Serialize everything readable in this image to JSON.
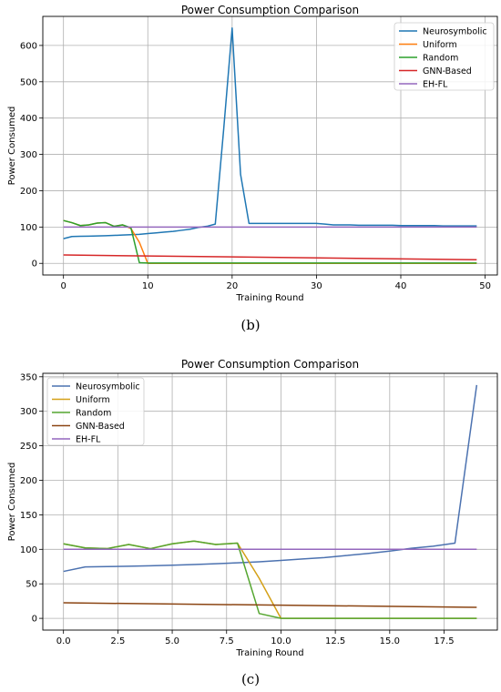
{
  "chart_data": [
    {
      "type": "line",
      "panel_label": "(b)",
      "title": "Power Consumption Comparison",
      "xlabel": "Training Round",
      "ylabel": "Power Consumed",
      "xlim": [
        -2.45,
        51.45
      ],
      "ylim": [
        -32,
        680
      ],
      "xticks": [
        0,
        10,
        20,
        30,
        40,
        50
      ],
      "xtick_labels": [
        "0",
        "10",
        "20",
        "30",
        "40",
        "50"
      ],
      "yticks": [
        0,
        100,
        200,
        300,
        400,
        500,
        600
      ],
      "ytick_labels": [
        "0",
        "100",
        "200",
        "300",
        "400",
        "500",
        "600"
      ],
      "grid": true,
      "legend_position": "top-right",
      "series": [
        {
          "name": "Neurosymbolic",
          "color": "#1f77b4",
          "x": [
            0,
            1,
            2,
            3,
            4,
            5,
            6,
            7,
            8,
            9,
            10,
            11,
            12,
            13,
            14,
            15,
            16,
            17,
            18,
            19,
            20,
            21,
            22,
            23,
            24,
            25,
            26,
            27,
            28,
            29,
            30,
            31,
            32,
            33,
            34,
            35,
            36,
            37,
            38,
            39,
            40,
            41,
            42,
            43,
            44,
            45,
            46,
            47,
            48,
            49
          ],
          "y": [
            68,
            74,
            74.5,
            75,
            75.5,
            76,
            77,
            78,
            79,
            80,
            82,
            84,
            86,
            88,
            91,
            94,
            99,
            102,
            108,
            370,
            648,
            245,
            110,
            110,
            110,
            110,
            110,
            110,
            110,
            110,
            110,
            108,
            106,
            106,
            106,
            105,
            105,
            105,
            105,
            105,
            104,
            104,
            104,
            104,
            104,
            103,
            103,
            103,
            103,
            103
          ]
        },
        {
          "name": "Uniform",
          "color": "#ff7f0e",
          "x": [
            0,
            1,
            2,
            3,
            4,
            5,
            6,
            7,
            8,
            9,
            10,
            11,
            12,
            13,
            14,
            15,
            16,
            17,
            18,
            19,
            20,
            21,
            22,
            23,
            24,
            25,
            26,
            27,
            28,
            29,
            30,
            31,
            32,
            33,
            34,
            35,
            36,
            37,
            38,
            39,
            40,
            41,
            42,
            43,
            44,
            45,
            46,
            47,
            48,
            49
          ],
          "y": [
            118,
            112,
            104,
            106,
            111,
            112,
            102,
            106,
            96,
            58,
            0,
            0,
            0,
            0,
            0,
            0,
            0,
            0,
            0,
            0,
            0,
            0,
            0,
            0,
            0,
            0,
            0,
            0,
            0,
            0,
            0,
            0,
            0,
            0,
            0,
            0,
            0,
            0,
            0,
            0,
            0,
            0,
            0,
            0,
            0,
            0,
            0,
            0,
            0,
            0
          ]
        },
        {
          "name": "Random",
          "color": "#2ca02c",
          "x": [
            0,
            1,
            2,
            3,
            4,
            5,
            6,
            7,
            8,
            9,
            10,
            11,
            12,
            13,
            14,
            15,
            16,
            17,
            18,
            19,
            20,
            21,
            22,
            23,
            24,
            25,
            26,
            27,
            28,
            29,
            30,
            31,
            32,
            33,
            34,
            35,
            36,
            37,
            38,
            39,
            40,
            41,
            42,
            43,
            44,
            45,
            46,
            47,
            48,
            49
          ],
          "y": [
            118,
            112,
            104,
            106,
            111,
            112,
            102,
            106,
            98,
            2,
            1,
            1,
            1,
            1,
            1,
            1,
            1,
            1,
            1,
            1,
            1,
            1,
            1,
            1,
            1,
            1,
            1,
            1,
            1,
            1,
            1,
            1,
            1,
            1,
            1,
            1,
            1,
            1,
            1,
            1,
            1,
            1,
            1,
            1,
            1,
            1,
            1,
            1,
            1,
            1
          ]
        },
        {
          "name": "GNN-Based",
          "color": "#d62728",
          "x": [
            0,
            49
          ],
          "y": [
            23,
            10
          ]
        },
        {
          "name": "EH-FL",
          "color": "#9467bd",
          "x": [
            0,
            49
          ],
          "y": [
            100,
            100
          ]
        }
      ]
    },
    {
      "type": "line",
      "panel_label": "(c)",
      "title": "Power Consumption Comparison",
      "xlabel": "Training Round",
      "ylabel": "Power Consumed",
      "xlim": [
        -0.95,
        19.95
      ],
      "ylim": [
        -17,
        355
      ],
      "xticks": [
        0,
        2.5,
        5,
        7.5,
        10,
        12.5,
        15,
        17.5
      ],
      "xtick_labels": [
        "0.0",
        "2.5",
        "5.0",
        "7.5",
        "10.0",
        "12.5",
        "15.0",
        "17.5"
      ],
      "yticks": [
        0,
        50,
        100,
        150,
        200,
        250,
        300,
        350
      ],
      "ytick_labels": [
        "0",
        "50",
        "100",
        "150",
        "200",
        "250",
        "300",
        "350"
      ],
      "grid": true,
      "legend_position": "top-left",
      "series": [
        {
          "name": "Neurosymbolic",
          "color": "#4c72b0",
          "x": [
            0,
            1,
            2,
            3,
            4,
            5,
            6,
            7,
            8,
            9,
            10,
            11,
            12,
            13,
            14,
            15,
            16,
            17,
            18,
            19
          ],
          "y": [
            68,
            74.5,
            75,
            75.5,
            76.2,
            77,
            78,
            79.2,
            80.5,
            82,
            84,
            86,
            88,
            91,
            94,
            97.5,
            101.5,
            104.5,
            109,
            338
          ]
        },
        {
          "name": "Uniform",
          "color": "#d4a017",
          "x": [
            0,
            1,
            2,
            3,
            4,
            5,
            6,
            7,
            8,
            9,
            10,
            11,
            12,
            13,
            14,
            15,
            16,
            17,
            18,
            19
          ],
          "y": [
            108,
            102,
            101,
            107,
            101,
            108,
            112,
            107,
            109,
            58,
            0,
            0,
            0,
            0,
            0,
            0,
            0,
            0,
            0,
            0
          ]
        },
        {
          "name": "Random",
          "color": "#55a630",
          "x": [
            0,
            1,
            2,
            3,
            4,
            5,
            6,
            7,
            8,
            9,
            10,
            11,
            12,
            13,
            14,
            15,
            16,
            17,
            18,
            19
          ],
          "y": [
            108,
            102,
            101,
            107,
            101,
            108,
            112,
            107,
            109,
            7,
            0,
            0,
            0,
            0,
            0,
            0,
            0,
            0,
            0,
            0
          ]
        },
        {
          "name": "GNN-Based",
          "color": "#8b4513",
          "x": [
            0,
            19
          ],
          "y": [
            22.5,
            16
          ]
        },
        {
          "name": "EH-FL",
          "color": "#9467bd",
          "x": [
            0,
            19
          ],
          "y": [
            100,
            100
          ]
        }
      ]
    }
  ]
}
